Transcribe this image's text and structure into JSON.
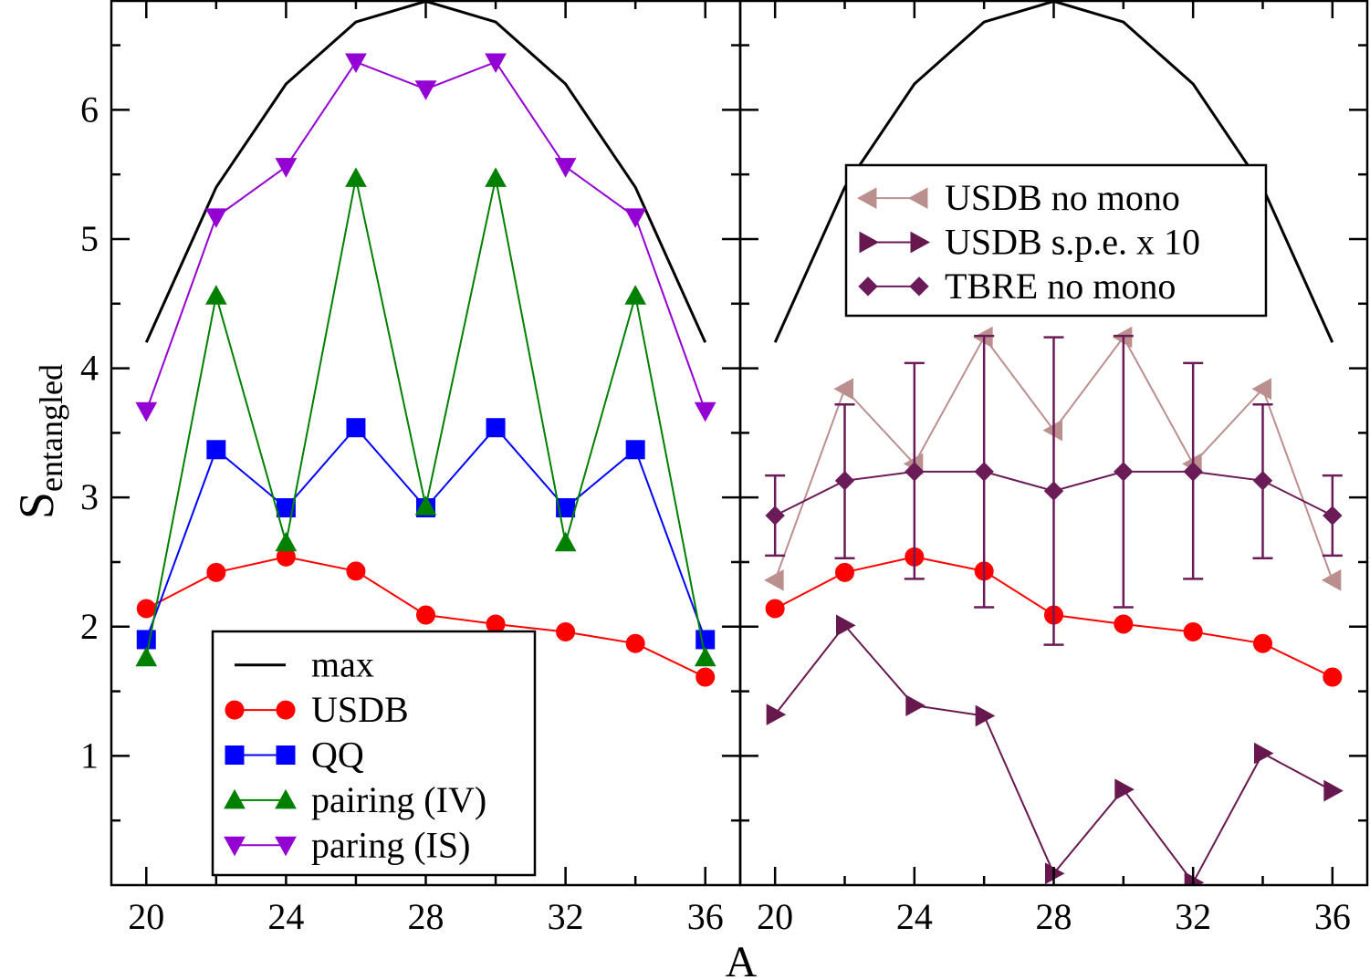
{
  "chart_data": {
    "type": "line",
    "xlabel": "A",
    "ylabel": "S",
    "ylabel_sub": "entangled",
    "xlim": [
      19,
      37
    ],
    "ylim": [
      0,
      6.85
    ],
    "xticks": [
      "20",
      "24",
      "28",
      "32",
      "36"
    ],
    "yticks": [
      "1",
      "2",
      "3",
      "4",
      "5",
      "6"
    ],
    "colors": {
      "max": "#000000",
      "usdb": "#ff0000",
      "qq": "#0000ff",
      "pairing_iv": "#008000",
      "paring_is": "#9400d3",
      "usdb_no_mono": "#bc8f8f",
      "usdb_spe": "#67194f",
      "tbre_no_mono": "#6b1b57"
    },
    "panels": [
      {
        "id": "left",
        "legend": "bottom-center",
        "series": [
          {
            "key": "max",
            "name": "max",
            "marker": "none",
            "color": "#000000",
            "x": [
              20,
              22,
              24,
              26,
              28,
              30,
              32,
              34,
              36
            ],
            "y": [
              4.2,
              5.4,
              6.2,
              6.68,
              6.84,
              6.68,
              6.2,
              5.4,
              4.2
            ]
          },
          {
            "key": "usdb",
            "name": "USDB",
            "marker": "circle",
            "color": "#ff0000",
            "x": [
              20,
              22,
              24,
              26,
              28,
              30,
              32,
              34,
              36
            ],
            "y": [
              2.14,
              2.42,
              2.54,
              2.43,
              2.09,
              2.02,
              1.96,
              1.87,
              1.61
            ]
          },
          {
            "key": "qq",
            "name": "QQ",
            "marker": "square",
            "color": "#0000ff",
            "x": [
              20,
              22,
              24,
              26,
              28,
              30,
              32,
              34,
              36
            ],
            "y": [
              1.9,
              3.37,
              2.92,
              3.54,
              2.92,
              3.54,
              2.92,
              3.37,
              1.9
            ]
          },
          {
            "key": "pairing_iv",
            "name": "pairing (IV)",
            "marker": "triangle-up",
            "color": "#008000",
            "x": [
              20,
              22,
              24,
              26,
              28,
              30,
              32,
              34,
              36
            ],
            "y": [
              1.76,
              4.56,
              2.65,
              5.47,
              2.93,
              5.47,
              2.65,
              4.56,
              1.76
            ]
          },
          {
            "key": "paring_is",
            "name": "paring (IS)",
            "marker": "triangle-down",
            "color": "#9400d3",
            "x": [
              20,
              22,
              24,
              26,
              28,
              30,
              32,
              34,
              36
            ],
            "y": [
              3.67,
              5.17,
              5.56,
              6.37,
              6.16,
              6.37,
              5.56,
              5.17,
              3.67
            ]
          }
        ]
      },
      {
        "id": "right",
        "legend": "top-center",
        "series": [
          {
            "key": "max",
            "name": "",
            "marker": "none",
            "color": "#000000",
            "x": [
              20,
              22,
              24,
              26,
              28,
              30,
              32,
              34,
              36
            ],
            "y": [
              4.2,
              5.4,
              6.2,
              6.68,
              6.84,
              6.68,
              6.2,
              5.4,
              4.2
            ]
          },
          {
            "key": "usdb",
            "name": "",
            "marker": "circle",
            "color": "#ff0000",
            "x": [
              20,
              22,
              24,
              26,
              28,
              30,
              32,
              34,
              36
            ],
            "y": [
              2.14,
              2.42,
              2.54,
              2.43,
              2.09,
              2.02,
              1.96,
              1.87,
              1.61
            ]
          },
          {
            "key": "usdb_no_mono",
            "name": "USDB no mono",
            "marker": "triangle-left",
            "color": "#bc8f8f",
            "x": [
              20,
              22,
              24,
              26,
              28,
              30,
              32,
              34,
              36
            ],
            "y": [
              2.36,
              3.84,
              3.26,
              4.24,
              3.52,
              4.24,
              3.26,
              3.84,
              2.36
            ]
          },
          {
            "key": "usdb_spe",
            "name": "USDB s.p.e. x 10",
            "marker": "triangle-right",
            "color": "#67194f",
            "x": [
              20,
              22,
              24,
              26,
              28,
              30,
              32,
              34,
              36
            ],
            "y": [
              1.32,
              2.01,
              1.39,
              1.31,
              0.09,
              0.74,
              0.02,
              1.02,
              0.73
            ]
          },
          {
            "key": "tbre_no_mono",
            "name": "TBRE no mono",
            "marker": "diamond",
            "color": "#6b1b57",
            "x": [
              20,
              22,
              24,
              26,
              28,
              30,
              32,
              34,
              36
            ],
            "y": [
              2.86,
              3.13,
              3.2,
              3.2,
              3.05,
              3.2,
              3.2,
              3.13,
              2.86
            ],
            "err_low": [
              2.55,
              2.53,
              2.37,
              2.15,
              1.86,
              2.15,
              2.37,
              2.53,
              2.55
            ],
            "err_high": [
              3.17,
              3.72,
              4.04,
              4.25,
              4.24,
              4.25,
              4.04,
              3.72,
              3.17
            ]
          }
        ]
      }
    ]
  }
}
